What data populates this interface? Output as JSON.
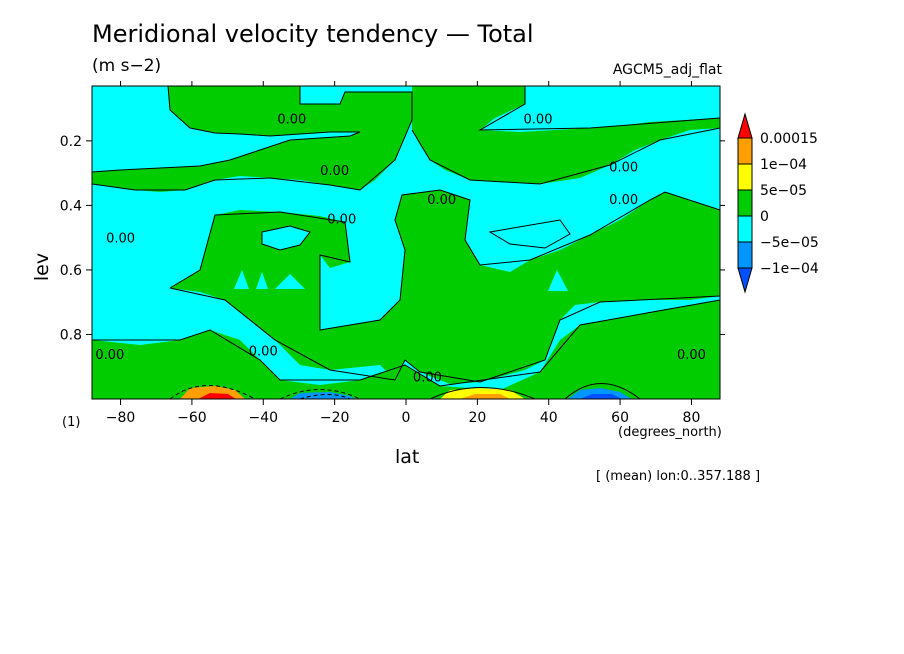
{
  "chart_data": {
    "type": "contour",
    "title": "Meridional velocity tendency — Total",
    "units": "(m s−2)",
    "dataset": "AGCM5_adj_flat",
    "figure_number": "(1)",
    "xlabel": "lat",
    "xunits": "(degrees_north)",
    "ylabel": "lev",
    "note": "[ (mean) lon:0..357.188 ]",
    "xlim": [
      -88,
      88
    ],
    "ylim": [
      1.0,
      0.03
    ],
    "xticks": [
      -80,
      -60,
      -40,
      -20,
      0,
      20,
      40,
      60,
      80
    ],
    "xtick_labels": [
      "−80",
      "−60",
      "−40",
      "−20",
      "0",
      "20",
      "40",
      "60",
      "80"
    ],
    "yticks": [
      0.2,
      0.4,
      0.6,
      0.8
    ],
    "ytick_labels": [
      "0.2",
      "0.4",
      "0.6",
      "0.8"
    ],
    "contour_label": "0.00",
    "contour_label_positions": [
      {
        "lat": -32,
        "lev": 0.13
      },
      {
        "lat": -20,
        "lev": 0.29
      },
      {
        "lat": -18,
        "lev": 0.44
      },
      {
        "lat": -80,
        "lev": 0.5
      },
      {
        "lat": -40,
        "lev": 0.85
      },
      {
        "lat": -83,
        "lev": 0.86
      },
      {
        "lat": 10,
        "lev": 0.38
      },
      {
        "lat": 37,
        "lev": 0.13
      },
      {
        "lat": 61,
        "lev": 0.28
      },
      {
        "lat": 61,
        "lev": 0.38
      },
      {
        "lat": 6,
        "lev": 0.93
      },
      {
        "lat": 80,
        "lev": 0.86
      }
    ],
    "colorbar": {
      "levels": [
        "0.00015",
        "1e−04",
        "5e−05",
        "0",
        "−5e−05",
        "−1e−04"
      ],
      "colors": [
        "#ff0000",
        "#ffa000",
        "#ffff00",
        "#00cc00",
        "#00ffff",
        "#0096ff",
        "#0050ff"
      ]
    },
    "colors": {
      "negative_small": "#00ffff",
      "positive_small": "#00cc00",
      "positive_large": "#ffff00",
      "negative_large": "#0050ff"
    }
  }
}
